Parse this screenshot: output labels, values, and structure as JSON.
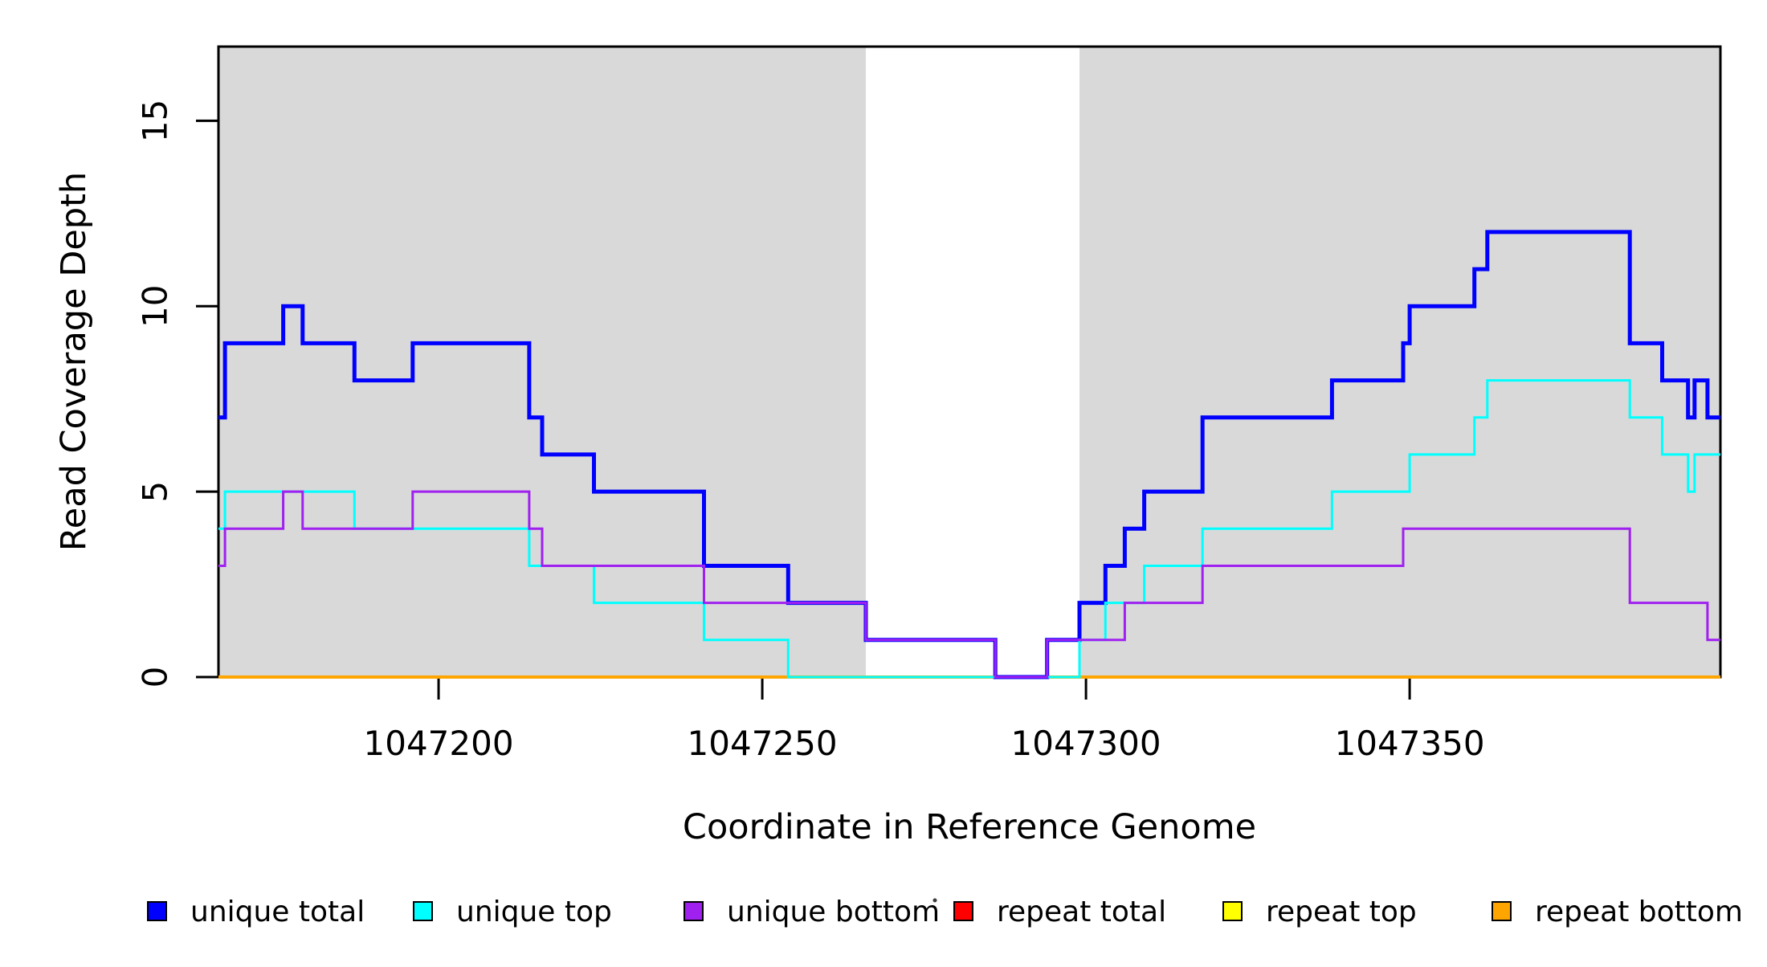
{
  "chart_data": {
    "type": "line",
    "subtype": "step-after",
    "title": "",
    "xlabel": "Coordinate in Reference Genome",
    "ylabel": "Read Coverage Depth",
    "xlim": [
      1047166,
      1047398
    ],
    "ylim": [
      0,
      17
    ],
    "x_ticks": [
      1047200,
      1047250,
      1047300,
      1047350
    ],
    "y_ticks": [
      0,
      5,
      10,
      15
    ],
    "grid": false,
    "legend_position": "bottom",
    "shade_color": "#d9d9d9",
    "shaded_regions": [
      {
        "x0": 1047166,
        "x1": 1047266
      },
      {
        "x0": 1047299,
        "x1": 1047398
      }
    ],
    "series": [
      {
        "name": "unique total",
        "color": "#0000ff",
        "line_width": 5,
        "steps": [
          [
            1047166,
            7
          ],
          [
            1047167,
            9
          ],
          [
            1047176,
            10
          ],
          [
            1047179,
            9
          ],
          [
            1047187,
            8
          ],
          [
            1047196,
            9
          ],
          [
            1047214,
            7
          ],
          [
            1047216,
            6
          ],
          [
            1047224,
            5
          ],
          [
            1047241,
            3
          ],
          [
            1047254,
            2
          ],
          [
            1047266,
            1
          ],
          [
            1047286,
            0
          ],
          [
            1047294,
            1
          ],
          [
            1047299,
            2
          ],
          [
            1047303,
            3
          ],
          [
            1047306,
            4
          ],
          [
            1047309,
            5
          ],
          [
            1047318,
            7
          ],
          [
            1047338,
            8
          ],
          [
            1047349,
            9
          ],
          [
            1047350,
            10
          ],
          [
            1047360,
            11
          ],
          [
            1047362,
            12
          ],
          [
            1047384,
            9
          ],
          [
            1047389,
            8
          ],
          [
            1047393,
            7
          ],
          [
            1047394,
            8
          ],
          [
            1047396,
            7
          ]
        ]
      },
      {
        "name": "unique top",
        "color": "#00ffff",
        "line_width": 3,
        "steps": [
          [
            1047166,
            4
          ],
          [
            1047167,
            5
          ],
          [
            1047187,
            4
          ],
          [
            1047214,
            3
          ],
          [
            1047224,
            2
          ],
          [
            1047241,
            1
          ],
          [
            1047254,
            0
          ],
          [
            1047299,
            1
          ],
          [
            1047303,
            2
          ],
          [
            1047309,
            3
          ],
          [
            1047318,
            4
          ],
          [
            1047338,
            5
          ],
          [
            1047350,
            6
          ],
          [
            1047360,
            7
          ],
          [
            1047362,
            8
          ],
          [
            1047384,
            7
          ],
          [
            1047389,
            6
          ],
          [
            1047393,
            5
          ],
          [
            1047394,
            6
          ]
        ]
      },
      {
        "name": "unique bottom",
        "color": "#a020f0",
        "line_width": 3,
        "steps": [
          [
            1047166,
            3
          ],
          [
            1047167,
            4
          ],
          [
            1047176,
            5
          ],
          [
            1047179,
            4
          ],
          [
            1047196,
            5
          ],
          [
            1047214,
            4
          ],
          [
            1047216,
            3
          ],
          [
            1047241,
            2
          ],
          [
            1047266,
            1
          ],
          [
            1047286,
            0
          ],
          [
            1047294,
            1
          ],
          [
            1047306,
            2
          ],
          [
            1047318,
            3
          ],
          [
            1047349,
            4
          ],
          [
            1047384,
            2
          ],
          [
            1047396,
            1
          ]
        ]
      },
      {
        "name": "repeat total",
        "color": "#ff0000",
        "line_width": 3,
        "steps": [
          [
            1047166,
            0
          ]
        ]
      },
      {
        "name": "repeat top",
        "color": "#ffff00",
        "line_width": 3,
        "steps": [
          [
            1047166,
            0
          ]
        ]
      },
      {
        "name": "repeat bottom",
        "color": "#ffa500",
        "line_width": 4,
        "steps": [
          [
            1047166,
            0
          ]
        ]
      }
    ],
    "draw_order": [
      3,
      4,
      5,
      0,
      1,
      2
    ],
    "stray_mark": "·"
  }
}
